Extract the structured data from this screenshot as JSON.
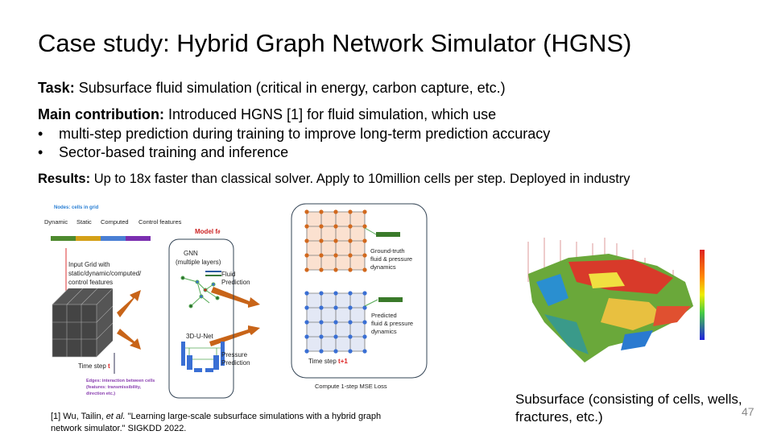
{
  "title": "Case study: Hybrid Graph Network Simulator (HGNS)",
  "task": {
    "label": "Task:",
    "text": " Subsurface fluid simulation (critical in energy, carbon capture, etc.)"
  },
  "main_contribution": {
    "label": "Main contribution:",
    "text": " Introduced HGNS [1] for fluid simulation, which use"
  },
  "bullets": [
    "multi-step prediction during training to improve long-term prediction accuracy",
    "Sector-based training and inference"
  ],
  "bullet_symbol": "•",
  "results": {
    "label": "Results:",
    "text": " Up to 18x faster than classical solver. Apply to 10million cells per step. Deployed in industry"
  },
  "diagram": {
    "nodes_title": "Nodes: cells in grid",
    "features": [
      "Dynamic",
      "Static",
      "Computed",
      "Control features"
    ],
    "feature_colors": [
      "#4e8a2e",
      "#d4a017",
      "#4a7fd4",
      "#7b2fb0"
    ],
    "input_grid": [
      "Input Grid with",
      "static/dynamic/computed/",
      "control features"
    ],
    "time_step": "Time step ",
    "t": "t",
    "edges": [
      "Edges: interaction between cells",
      "(features: transmissibility,",
      "direction etc.)"
    ],
    "model_label": "Model f",
    "model_sub": "θ",
    "gnn": [
      "GNN",
      "(multiple layers)"
    ],
    "unet": "3D-U-Net",
    "fluid_pred": [
      "Fluid",
      "Prediction"
    ],
    "pressure_pred": [
      "Pressure",
      "Prediction"
    ],
    "ground_truth": [
      "Ground-truth",
      "fluid & pressure",
      "dynamics"
    ],
    "predicted": [
      "Predicted",
      "fluid & pressure",
      "dynamics"
    ],
    "time_step_next": "Time step ",
    "t1": "t+1",
    "loss": "Compute 1-step MSE Loss"
  },
  "caption": [
    "Subsurface (consisting of cells, wells,",
    "fractures, etc.)"
  ],
  "footnote": {
    "pre": "[1] Wu, Tailin, ",
    "etal": "et al.",
    "post": " \"Learning large-scale subsurface simulations with a hybrid graph",
    "line2": "network simulator.\" SIGKDD 2022."
  },
  "page_number": "47"
}
